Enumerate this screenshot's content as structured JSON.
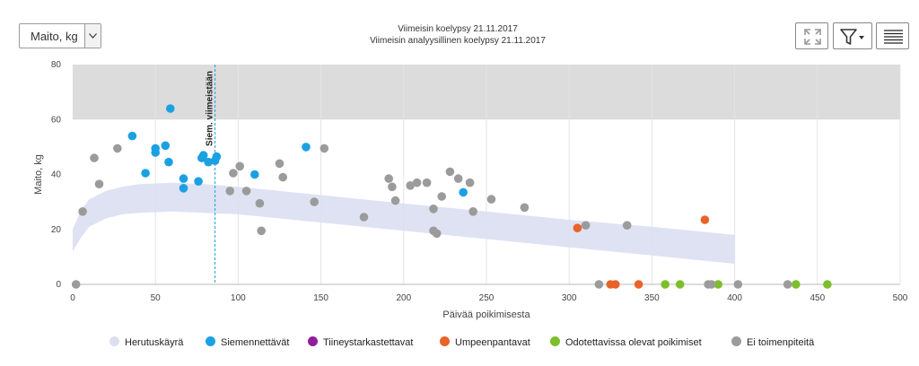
{
  "toolbar": {
    "select_value": "Maito, kg",
    "last_test_weighing": "Viimeisin koelypsy 21.11.2017",
    "last_analysis_weighing": "Viimeisin analyysillinen koelypsy 21.11.2017"
  },
  "chart_data": {
    "type": "scatter",
    "xlabel": "Päivää poikimisesta",
    "ylabel": "Maito, kg",
    "xlim": [
      0,
      500
    ],
    "ylim": [
      0,
      80
    ],
    "xticks": [
      0,
      50,
      100,
      150,
      200,
      250,
      300,
      350,
      400,
      450,
      500
    ],
    "yticks": [
      0,
      20,
      40,
      60,
      80
    ],
    "grid": "vertical",
    "target_band": [
      60,
      80
    ],
    "marker": {
      "x": 86,
      "label": "Siem. viimeistään"
    },
    "lactation_curve": {
      "name": "Herutuskäyrä",
      "color": "#dcdff2",
      "x": [
        0,
        5,
        10,
        20,
        30,
        40,
        60,
        80,
        100,
        150,
        200,
        250,
        300,
        350,
        400
      ],
      "upper": [
        20,
        27,
        31,
        34,
        35.5,
        36.5,
        37,
        36.5,
        35.5,
        32.5,
        29.5,
        26.5,
        23.5,
        21,
        18
      ],
      "lower": [
        12,
        17,
        21,
        24,
        25.5,
        26,
        26.5,
        26,
        25.5,
        22.5,
        19.5,
        16.5,
        13.5,
        10.5,
        7.5
      ]
    },
    "series": [
      {
        "name": "Siemennettävät",
        "color": "#1ba1e2",
        "points": [
          [
            36,
            54
          ],
          [
            44,
            40.5
          ],
          [
            50,
            48
          ],
          [
            50,
            49.5
          ],
          [
            56,
            50.5
          ],
          [
            58,
            44.5
          ],
          [
            59,
            64
          ],
          [
            67,
            38.5
          ],
          [
            67,
            35
          ],
          [
            76,
            37.5
          ],
          [
            78,
            46
          ],
          [
            79,
            47
          ],
          [
            82,
            44.5
          ],
          [
            86,
            45
          ],
          [
            87,
            46.5
          ],
          [
            110,
            40
          ],
          [
            141,
            50
          ],
          [
            236,
            33.5
          ]
        ]
      },
      {
        "name": "Tiineystarkastettavat",
        "color": "#8e1e9a",
        "points": []
      },
      {
        "name": "Umpeenpantavat",
        "color": "#e8622a",
        "points": [
          [
            305,
            20.5
          ],
          [
            325,
            0
          ],
          [
            328,
            0
          ],
          [
            342,
            0
          ],
          [
            382,
            23.5
          ]
        ]
      },
      {
        "name": "Odotettavissa olevat poikimiset",
        "color": "#7cbf2b",
        "points": [
          [
            358,
            0
          ],
          [
            367,
            0
          ],
          [
            390,
            0
          ],
          [
            437,
            0
          ],
          [
            456,
            0
          ]
        ]
      },
      {
        "name": "Ei toimenpiteitä",
        "color": "#9b9b9b",
        "points": [
          [
            2,
            0
          ],
          [
            6,
            26.5
          ],
          [
            13,
            46
          ],
          [
            16,
            36.5
          ],
          [
            27,
            49.5
          ],
          [
            95,
            34
          ],
          [
            97,
            40.5
          ],
          [
            101,
            43
          ],
          [
            105,
            34
          ],
          [
            113,
            29.5
          ],
          [
            114,
            19.5
          ],
          [
            125,
            44
          ],
          [
            127,
            39
          ],
          [
            146,
            30
          ],
          [
            152,
            49.5
          ],
          [
            176,
            24.5
          ],
          [
            191,
            38.5
          ],
          [
            193,
            35.5
          ],
          [
            195,
            30.5
          ],
          [
            204,
            36
          ],
          [
            208,
            37
          ],
          [
            214,
            37
          ],
          [
            218,
            19.5
          ],
          [
            218,
            27.5
          ],
          [
            220,
            18.5
          ],
          [
            223,
            32
          ],
          [
            228,
            41
          ],
          [
            233,
            38.5
          ],
          [
            240,
            37
          ],
          [
            242,
            26.5
          ],
          [
            253,
            31
          ],
          [
            273,
            28
          ],
          [
            310,
            21.5
          ],
          [
            318,
            0
          ],
          [
            335,
            21.5
          ],
          [
            384,
            0
          ],
          [
            386,
            0
          ],
          [
            402,
            0
          ],
          [
            432,
            0
          ]
        ]
      }
    ]
  }
}
